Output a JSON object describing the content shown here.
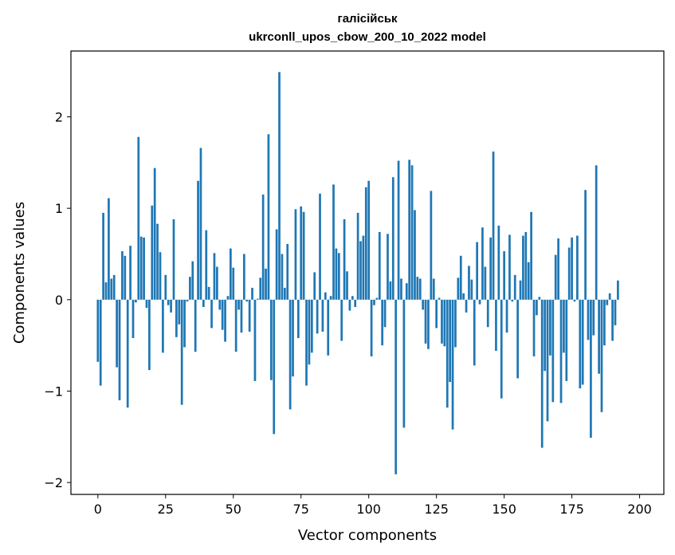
{
  "chart_data": {
    "type": "bar",
    "title_line1": "галісійськ",
    "title_line2": "ukrconll_upos_cbow_200_10_2022 model",
    "xlabel": "Vector components",
    "ylabel": "Components values",
    "xlim": [
      -9.95,
      208.95
    ],
    "ylim": [
      -2.13,
      2.72
    ],
    "xticks": [
      0,
      25,
      50,
      75,
      100,
      125,
      150,
      175,
      200
    ],
    "yticks": [
      -2,
      -1,
      0,
      1,
      2
    ],
    "ytick_labels": [
      "−2",
      "−1",
      "0",
      "1",
      "2"
    ],
    "bar_color": "#1f77b4",
    "grid": false,
    "values": [
      -0.68,
      -0.94,
      0.95,
      0.19,
      1.11,
      0.23,
      0.27,
      -0.74,
      -1.1,
      0.53,
      0.48,
      -1.18,
      0.59,
      -0.42,
      -0.03,
      1.78,
      0.69,
      0.68,
      -0.09,
      -0.77,
      1.03,
      1.44,
      0.83,
      0.52,
      -0.58,
      0.27,
      -0.06,
      -0.14,
      0.88,
      -0.41,
      -0.27,
      -1.15,
      -0.52,
      -0.02,
      0.25,
      0.42,
      -0.57,
      1.3,
      1.66,
      -0.08,
      0.76,
      0.14,
      -0.31,
      0.51,
      0.36,
      -0.11,
      -0.33,
      -0.46,
      0.04,
      0.56,
      0.35,
      -0.57,
      -0.11,
      -0.36,
      0.5,
      -0.02,
      -0.35,
      0.13,
      -0.89,
      0.01,
      0.24,
      1.15,
      0.34,
      1.81,
      -0.88,
      -1.47,
      0.77,
      2.49,
      0.5,
      0.13,
      0.61,
      -1.2,
      -0.84,
      0.99,
      -0.42,
      1.02,
      0.96,
      -0.94,
      -0.71,
      -0.58,
      0.3,
      -0.37,
      1.16,
      -0.35,
      0.08,
      -0.61,
      0.04,
      1.26,
      0.56,
      0.51,
      -0.45,
      0.88,
      0.31,
      -0.12,
      0.04,
      -0.08,
      0.95,
      0.64,
      0.7,
      1.23,
      1.3,
      -0.62,
      -0.06,
      0.02,
      0.74,
      -0.5,
      -0.3,
      0.72,
      0.2,
      1.34,
      -1.91,
      1.52,
      0.23,
      -1.4,
      0.18,
      1.53,
      1.47,
      0.98,
      0.25,
      0.23,
      -0.11,
      -0.48,
      -0.54,
      1.19,
      0.23,
      -0.31,
      0.02,
      -0.48,
      -0.51,
      -1.18,
      -0.9,
      -1.42,
      -0.52,
      0.24,
      0.48,
      0.07,
      -0.14,
      0.37,
      0.22,
      -0.72,
      0.63,
      -0.05,
      0.79,
      0.36,
      -0.3,
      0.68,
      1.62,
      -0.56,
      0.81,
      -1.08,
      0.53,
      -0.36,
      0.71,
      -0.02,
      0.27,
      -0.86,
      0.21,
      0.7,
      0.74,
      0.41,
      0.96,
      -0.62,
      -0.17,
      0.03,
      -1.62,
      -0.78,
      -1.33,
      -0.61,
      -1.12,
      0.49,
      0.67,
      -1.13,
      -0.58,
      -0.89,
      0.57,
      0.68,
      -0.02,
      0.7,
      -0.97,
      -0.93,
      1.2,
      -0.44,
      -1.51,
      -0.39,
      1.47,
      -0.81,
      -1.23,
      -0.5,
      -0.06,
      0.07,
      -0.45,
      -0.28,
      0.21
    ]
  }
}
